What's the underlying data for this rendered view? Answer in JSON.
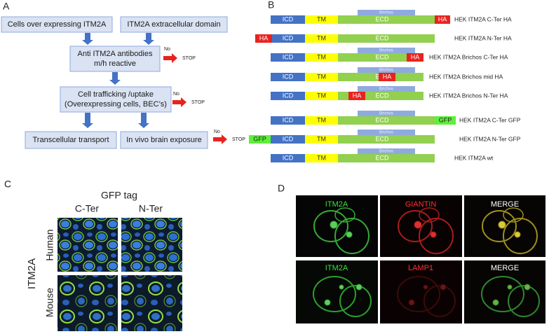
{
  "panel_a": {
    "label": "A",
    "boxes": [
      {
        "lines": [
          "Cells over expressing ITM2A"
        ]
      },
      {
        "lines": [
          "ITM2A extracellular domain"
        ]
      },
      {
        "lines": [
          "Anti ITM2A antibodies",
          "m/h reactive"
        ]
      },
      {
        "lines": [
          "Cell trafficking /uptake",
          "(Overexpressing cells, BEC’s)"
        ]
      },
      {
        "lines": [
          "Transcellular transport"
        ]
      },
      {
        "lines": [
          "In vivo brain exposure"
        ]
      }
    ],
    "stops": [
      {
        "no": "No",
        "stop": "STOP"
      },
      {
        "no": "No",
        "stop": "STOP"
      },
      {
        "no": "No",
        "stop": "STOP"
      }
    ]
  },
  "panel_b": {
    "label": "B",
    "constructs": [
      {
        "domains": [
          "ICD",
          "TM",
          "ECD"
        ],
        "brichos": "Brichos",
        "tag": "HA",
        "name": "HEK ITM2A C-Ter HA"
      },
      {
        "domains": [
          "ICD",
          "TM",
          "ECD"
        ],
        "tag": "HA",
        "name": "HEK ITM2A N-Ter HA"
      },
      {
        "domains": [
          "ICD",
          "TM",
          "ECD"
        ],
        "brichos": "Brichos",
        "tag": "HA",
        "name": "HEK ITM2A Brichos C-Ter HA"
      },
      {
        "domains": [
          "ICD",
          "TM",
          "ECD"
        ],
        "brichos": "Brichos",
        "tag": "HA",
        "name": "HEK ITM2A Brichos mid HA"
      },
      {
        "domains": [
          "ICD",
          "TM",
          "ECD"
        ],
        "brichos": "Brichos",
        "tag": "HA",
        "name": "HEK ITM2A Brichos N-Ter HA"
      },
      {
        "domains": [
          "ICD",
          "TM",
          "ECD"
        ],
        "brichos": "Brichos",
        "tag": "GFP",
        "name": "HEK ITM2A C-Ter GFP"
      },
      {
        "domains": [
          "ICD",
          "TM",
          "ECD"
        ],
        "brichos": "Brichos",
        "tag": "GFP",
        "name": "HEK ITM2A N-Ter GFP"
      },
      {
        "domains": [
          "ICD",
          "TM",
          "ECD"
        ],
        "brichos": "Brichos",
        "name": "HEK ITM2A wt"
      }
    ]
  },
  "panel_c": {
    "label": "C",
    "title": "GFP tag",
    "columns": [
      "C-Ter",
      "N-Ter"
    ],
    "rows": [
      "Human",
      "Mouse"
    ],
    "side_label": "ITM2A"
  },
  "panel_d": {
    "label": "D",
    "rows": [
      [
        "ITM2A",
        "GIANTIN",
        "MERGE"
      ],
      [
        "ITM2A",
        "LAMP1",
        "MERGE"
      ]
    ]
  }
}
